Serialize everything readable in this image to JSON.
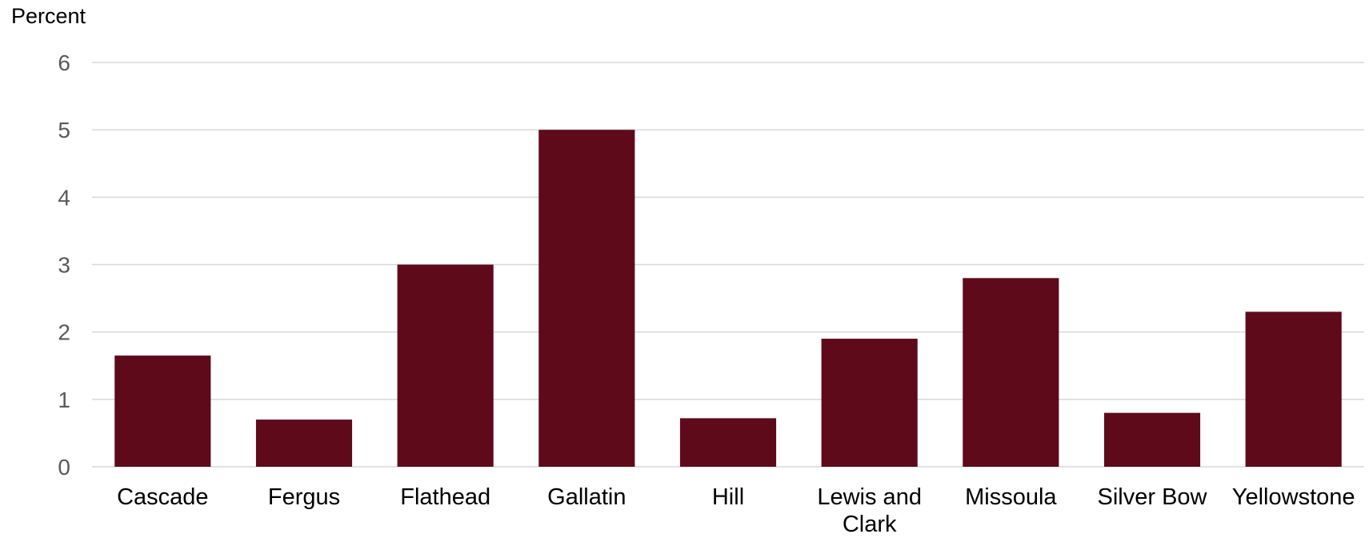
{
  "chart_data": {
    "type": "bar",
    "title": "",
    "xlabel": "",
    "ylabel": "Percent",
    "categories": [
      "Cascade",
      "Fergus",
      "Flathead",
      "Gallatin",
      "Hill",
      "Lewis and Clark",
      "Missoula",
      "Silver Bow",
      "Yellowstone"
    ],
    "values": [
      1.65,
      0.7,
      3.0,
      5.0,
      0.72,
      1.9,
      2.8,
      0.8,
      2.3
    ],
    "yticks": [
      0,
      1,
      2,
      3,
      4,
      5,
      6
    ],
    "ylim": [
      0,
      6
    ],
    "grid": true,
    "legend": "none",
    "bar_color": "#5e0a1a"
  }
}
